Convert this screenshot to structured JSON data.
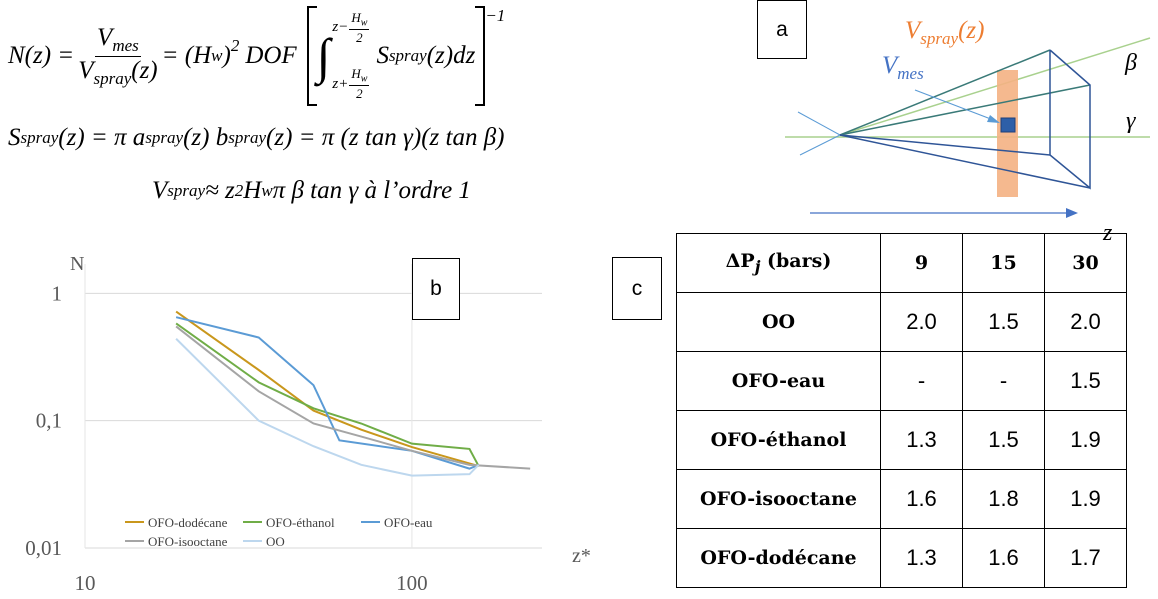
{
  "equations": [
    [
      "N(z) = ",
      "V",
      "mes",
      "V",
      "spray",
      "(z)",
      " = (H",
      "w",
      ")",
      "2",
      " DOF",
      "∫",
      "z−",
      "H",
      "w",
      "2",
      "z+",
      "H",
      "w",
      "2",
      "S",
      "spray",
      "(z)dz",
      "−1"
    ],
    [
      "S",
      "spray",
      "(z) = π a",
      "spray",
      "(z) b",
      "spray",
      "(z) = π (z tan γ)(z tan β)"
    ],
    [
      "V",
      "spray",
      " ≈ z",
      "2",
      " H",
      "w",
      " π β tan γ à l’ordre 1"
    ]
  ],
  "diagram": {
    "label": "a",
    "v_spray": [
      "V",
      "spray",
      "(z)"
    ],
    "v_mes": [
      "V",
      "mes"
    ],
    "beta": "β",
    "gamma": "γ",
    "z": "z"
  },
  "chart_data": {
    "type": "line",
    "label": "b",
    "y_label": "N",
    "x_label": "z*",
    "log_x": true,
    "log_y": true,
    "grid": true,
    "legend": "bottom-left",
    "xlim": [
      10,
      250
    ],
    "ylim": [
      0.01,
      1.7
    ],
    "xticks": [
      10,
      100
    ],
    "yticks": [
      {
        "value": 0.01,
        "label": "0,01"
      },
      {
        "value": 0.1,
        "label": "0,1"
      },
      1
    ],
    "series": [
      {
        "name": "OFO-dodécane",
        "color": "#C9971C",
        "x": [
          19,
          34,
          50,
          70,
          100,
          160
        ],
        "values": [
          0.72,
          0.25,
          0.12,
          0.085,
          0.062,
          0.044
        ]
      },
      {
        "name": "OFO-éthanol",
        "color": "#70AD47",
        "x": [
          19,
          34,
          50,
          70,
          100,
          150,
          160
        ],
        "values": [
          0.58,
          0.2,
          0.125,
          0.095,
          0.066,
          0.06,
          0.044
        ]
      },
      {
        "name": "OFO-eau",
        "color": "#5B9BD5",
        "x": [
          19,
          34,
          50,
          60,
          100,
          150,
          160
        ],
        "values": [
          0.65,
          0.45,
          0.19,
          0.07,
          0.058,
          0.042,
          0.045
        ]
      },
      {
        "name": "OFO-isooctane",
        "color": "#A5A5A5",
        "x": [
          19,
          34,
          50,
          70,
          100,
          150,
          230
        ],
        "values": [
          0.55,
          0.17,
          0.095,
          0.075,
          0.058,
          0.045,
          0.042
        ]
      },
      {
        "name": "OO",
        "color": "#BDD7EE",
        "x": [
          19,
          34,
          50,
          70,
          100,
          150,
          160
        ],
        "values": [
          0.44,
          0.1,
          0.063,
          0.045,
          0.037,
          0.038,
          0.045
        ]
      }
    ]
  },
  "table": {
    "label": "c",
    "header": [
      [
        "ΔP",
        "j",
        " (bars)"
      ],
      "9",
      "15",
      "30"
    ],
    "rows": [
      [
        "OO",
        "2.0",
        "1.5",
        "2.0"
      ],
      [
        "OFO-eau",
        "-",
        "-",
        "1.5"
      ],
      [
        "OFO-éthanol",
        "1.3",
        "1.5",
        "1.9"
      ],
      [
        "OFO-isooctane",
        "1.6",
        "1.8",
        "1.9"
      ],
      [
        "OFO-dodécane",
        "1.3",
        "1.6",
        "1.7"
      ]
    ]
  }
}
